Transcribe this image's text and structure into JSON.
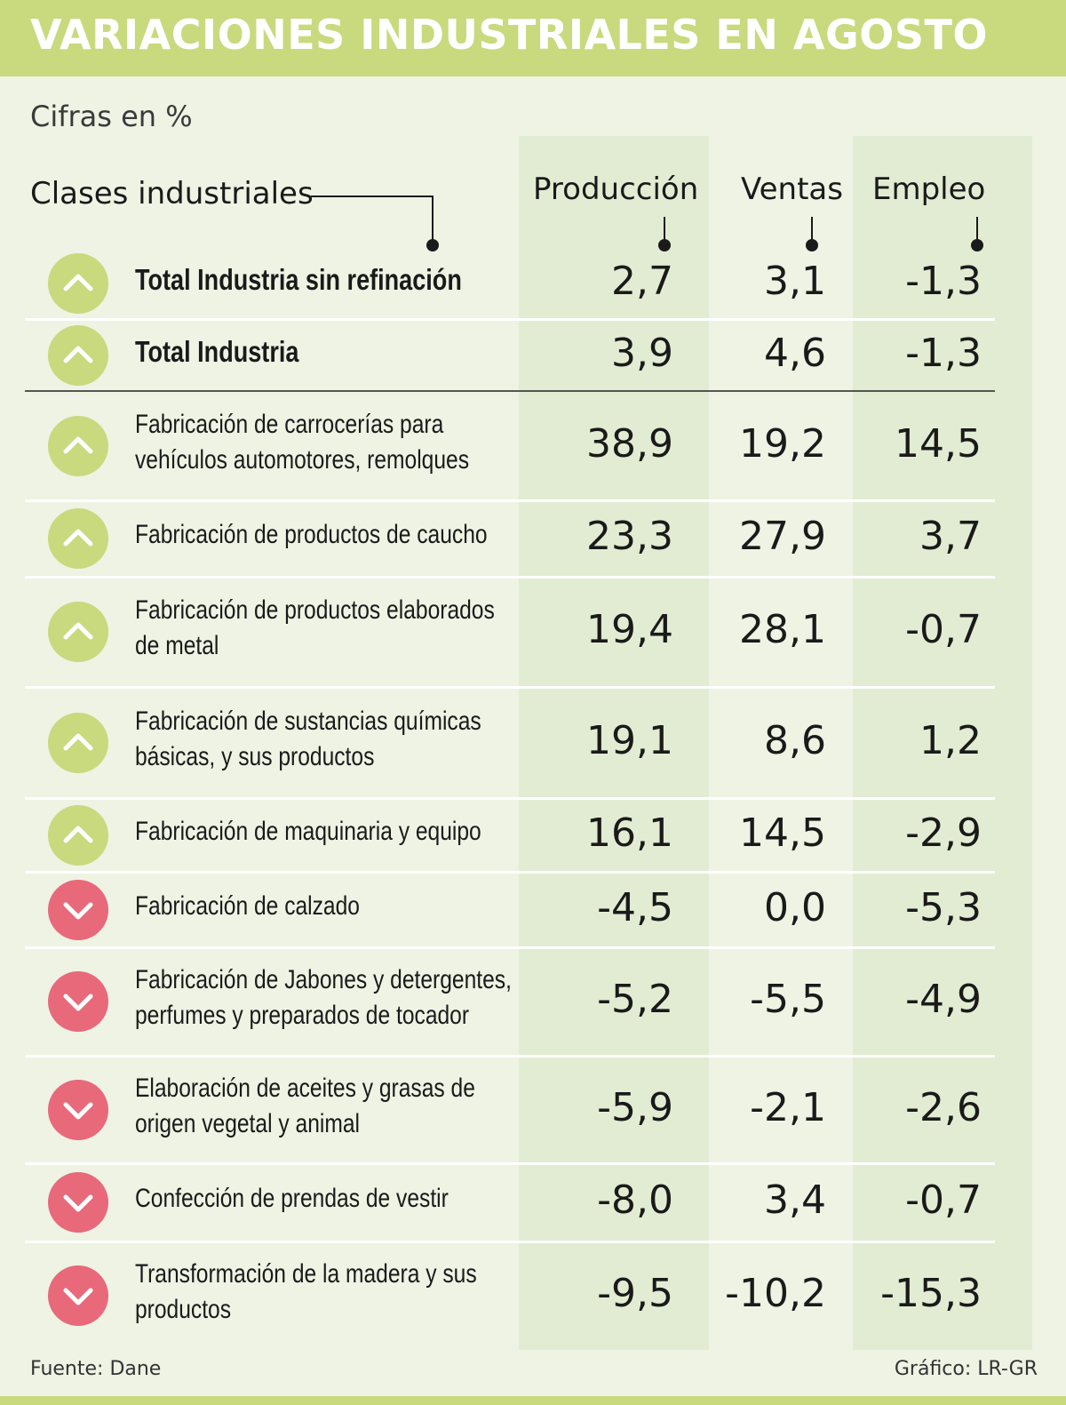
{
  "header": {
    "title": "VARIACIONES INDUSTRIALES EN AGOSTO"
  },
  "subtitle": "Cifras en %",
  "footer": {
    "source": "Fuente: Dane",
    "credit": "Gráfico: LR-GR"
  },
  "colors": {
    "up": "#c9d97d",
    "down": "#e8697a",
    "header": "#c9d97d",
    "band": "#e2ecd2",
    "background": "#eef3e4"
  },
  "chart_data": {
    "type": "table",
    "columns": [
      "Clases industriales",
      "Producción",
      "Ventas",
      "Empleo"
    ],
    "rows": [
      {
        "lines": [
          "Total Industria sin refinación"
        ],
        "bold": true,
        "trend": "up",
        "values": [
          "2,7",
          "3,1",
          "-1,3"
        ]
      },
      {
        "lines": [
          "Total Industria"
        ],
        "bold": true,
        "trend": "up",
        "values": [
          "3,9",
          "4,6",
          "-1,3"
        ]
      },
      {
        "lines": [
          "Fabricación de carrocerías para",
          "vehículos automotores, remolques"
        ],
        "bold": false,
        "trend": "up",
        "values": [
          "38,9",
          "19,2",
          "14,5"
        ]
      },
      {
        "lines": [
          "Fabricación de productos de caucho"
        ],
        "bold": false,
        "trend": "up",
        "values": [
          "23,3",
          "27,9",
          "3,7"
        ]
      },
      {
        "lines": [
          "Fabricación de productos elaborados",
          "de metal"
        ],
        "bold": false,
        "trend": "up",
        "values": [
          "19,4",
          "28,1",
          "-0,7"
        ]
      },
      {
        "lines": [
          "Fabricación de sustancias químicas",
          "básicas, y sus productos"
        ],
        "bold": false,
        "trend": "up",
        "values": [
          "19,1",
          "8,6",
          "1,2"
        ]
      },
      {
        "lines": [
          "Fabricación de maquinaria y equipo"
        ],
        "bold": false,
        "trend": "up",
        "values": [
          "16,1",
          "14,5",
          "-2,9"
        ]
      },
      {
        "lines": [
          "Fabricación de calzado"
        ],
        "bold": false,
        "trend": "down",
        "values": [
          "-4,5",
          "0,0",
          "-5,3"
        ]
      },
      {
        "lines": [
          "Fabricación de Jabones y detergentes,",
          "perfumes y preparados de tocador"
        ],
        "bold": false,
        "trend": "down",
        "values": [
          "-5,2",
          "-5,5",
          "-4,9"
        ]
      },
      {
        "lines": [
          "Elaboración de aceites y grasas de",
          "origen vegetal y animal"
        ],
        "bold": false,
        "trend": "down",
        "values": [
          "-5,9",
          "-2,1",
          "-2,6"
        ]
      },
      {
        "lines": [
          "Confección de prendas de vestir"
        ],
        "bold": false,
        "trend": "down",
        "values": [
          "-8,0",
          "3,4",
          "-0,7"
        ]
      },
      {
        "lines": [
          "Transformación de la madera y sus",
          "productos"
        ],
        "bold": false,
        "trend": "down",
        "values": [
          "-9,5",
          "-10,2",
          "-15,3"
        ]
      }
    ]
  }
}
